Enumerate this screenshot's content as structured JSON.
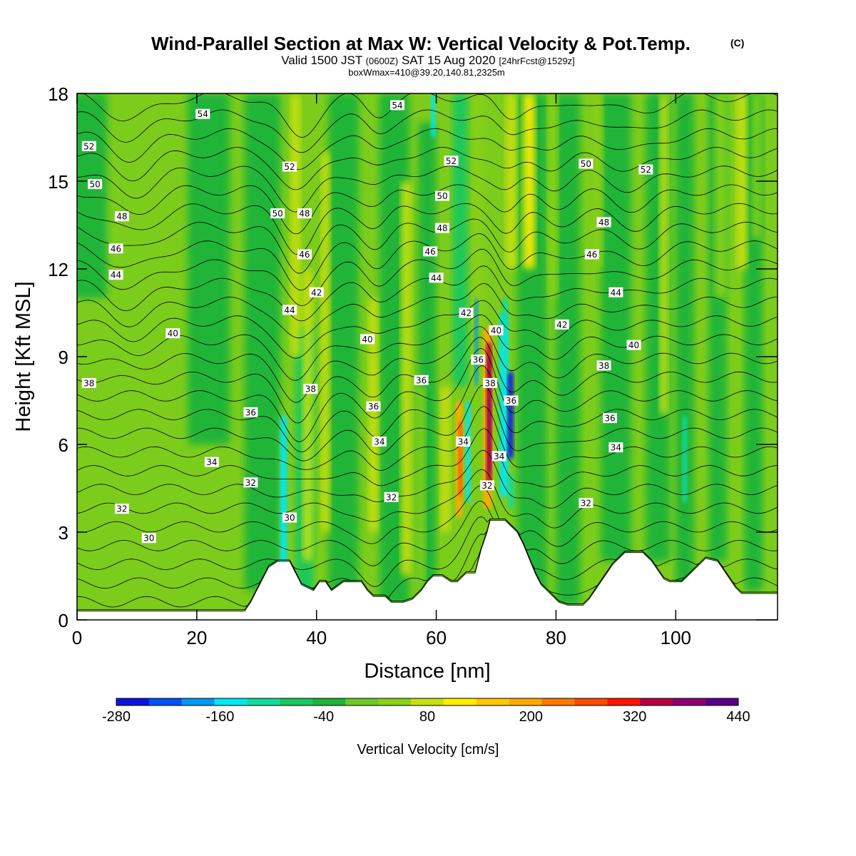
{
  "chart_data": {
    "type": "heatmap",
    "title": "Wind-Parallel Section at Max W: Vertical Velocity & Pot.Temp.",
    "title_mark": "(C)",
    "subtitle_prefix": "Valid 1500 JST",
    "subtitle_small1": "(0600Z)",
    "subtitle_mid": "SAT 15 Aug 2020",
    "subtitle_small2": "[24hrFcst@1529z]",
    "subtitle2": "boxWmax=410@39.20,140.81,2325m",
    "xlabel": "Distance [nm]",
    "ylabel": "Height [Kft MSL]",
    "xlim": [
      0,
      117
    ],
    "ylim": [
      0,
      18
    ],
    "x_ticks": [
      0,
      20,
      40,
      60,
      80,
      100
    ],
    "y_ticks": [
      0,
      3,
      6,
      9,
      12,
      15,
      18
    ],
    "colorbar": {
      "title": "Vertical Velocity [cm/s]",
      "tick_labels": [
        -280,
        -160,
        -40,
        80,
        200,
        320,
        440
      ],
      "levels": [
        -280,
        -240,
        -200,
        -160,
        -120,
        -80,
        -40,
        0,
        40,
        80,
        120,
        160,
        200,
        240,
        280,
        320,
        360,
        400,
        440
      ],
      "colors": [
        "#0a14e0",
        "#0050f5",
        "#0098f5",
        "#00e8f0",
        "#10dca0",
        "#18c860",
        "#1eb43a",
        "#6cc828",
        "#8ad218",
        "#c8e010",
        "#ffee00",
        "#ffc800",
        "#ffaa00",
        "#ff7800",
        "#ff4800",
        "#ff1400",
        "#b40040",
        "#8a0070",
        "#5a0088"
      ]
    },
    "background_color": "#7ccc1c",
    "terrain": [
      [
        0,
        0.3
      ],
      [
        28,
        0.3
      ],
      [
        29,
        0.6
      ],
      [
        30,
        1.0
      ],
      [
        31,
        1.4
      ],
      [
        32,
        1.8
      ],
      [
        33.5,
        2.0
      ],
      [
        35.5,
        2.0
      ],
      [
        36.5,
        1.6
      ],
      [
        37.5,
        1.2
      ],
      [
        39.5,
        1.0
      ],
      [
        40.5,
        1.3
      ],
      [
        41.5,
        1.3
      ],
      [
        42.5,
        1.0
      ],
      [
        44.5,
        1.3
      ],
      [
        46,
        1.3
      ],
      [
        47.5,
        1.3
      ],
      [
        48.5,
        1.0
      ],
      [
        49.5,
        0.8
      ],
      [
        51.5,
        0.8
      ],
      [
        52.5,
        0.6
      ],
      [
        54.5,
        0.6
      ],
      [
        56,
        0.7
      ],
      [
        57.5,
        1.0
      ],
      [
        58.5,
        1.3
      ],
      [
        59.5,
        1.5
      ],
      [
        61,
        1.5
      ],
      [
        62.5,
        1.3
      ],
      [
        63.5,
        1.3
      ],
      [
        65,
        1.6
      ],
      [
        66.5,
        1.6
      ],
      [
        67.5,
        2.4
      ],
      [
        68.5,
        3.0
      ],
      [
        69,
        3.4
      ],
      [
        71.5,
        3.4
      ],
      [
        72.5,
        3.2
      ],
      [
        73.5,
        3.0
      ],
      [
        74.5,
        2.6
      ],
      [
        75.5,
        2.1
      ],
      [
        76.5,
        1.6
      ],
      [
        77.5,
        1.2
      ],
      [
        78.5,
        1.0
      ],
      [
        79.5,
        0.8
      ],
      [
        80.5,
        0.6
      ],
      [
        82,
        0.5
      ],
      [
        84.5,
        0.5
      ],
      [
        85.5,
        0.7
      ],
      [
        86.5,
        1.0
      ],
      [
        87.5,
        1.3
      ],
      [
        88.5,
        1.6
      ],
      [
        89.5,
        1.9
      ],
      [
        91.5,
        2.3
      ],
      [
        94.5,
        2.3
      ],
      [
        96,
        2.0
      ],
      [
        97,
        1.7
      ],
      [
        98,
        1.4
      ],
      [
        99,
        1.3
      ],
      [
        101,
        1.3
      ],
      [
        102.5,
        1.6
      ],
      [
        104,
        1.9
      ],
      [
        105,
        2.1
      ],
      [
        107,
        2.0
      ],
      [
        108,
        1.7
      ],
      [
        109,
        1.4
      ],
      [
        110,
        1.1
      ],
      [
        111,
        0.9
      ],
      [
        112.5,
        0.9
      ],
      [
        117,
        0.9
      ]
    ],
    "contour_levels": [
      28,
      29,
      30,
      31,
      32,
      33,
      34,
      35,
      36,
      37,
      38,
      39,
      40,
      41,
      42,
      43,
      44,
      45,
      46,
      47,
      48,
      49,
      50,
      51,
      52,
      53,
      54,
      55,
      56
    ],
    "contour_labels": [
      {
        "text": "54",
        "x": 21,
        "y": 17.3
      },
      {
        "text": "52",
        "x": 2,
        "y": 16.2
      },
      {
        "text": "50",
        "x": 3,
        "y": 14.9
      },
      {
        "text": "48",
        "x": 7.5,
        "y": 13.8
      },
      {
        "text": "46",
        "x": 6.5,
        "y": 12.7
      },
      {
        "text": "44",
        "x": 6.5,
        "y": 11.8
      },
      {
        "text": "40",
        "x": 16,
        "y": 9.8
      },
      {
        "text": "38",
        "x": 2,
        "y": 8.1
      },
      {
        "text": "36",
        "x": 29,
        "y": 7.1
      },
      {
        "text": "34",
        "x": 22.5,
        "y": 5.4
      },
      {
        "text": "32",
        "x": 29,
        "y": 4.7
      },
      {
        "text": "32",
        "x": 7.5,
        "y": 3.8
      },
      {
        "text": "30",
        "x": 12,
        "y": 2.8
      },
      {
        "text": "30",
        "x": 35.5,
        "y": 3.5
      },
      {
        "text": "52",
        "x": 35.5,
        "y": 15.5
      },
      {
        "text": "50",
        "x": 33.5,
        "y": 13.9
      },
      {
        "text": "48",
        "x": 38,
        "y": 13.9
      },
      {
        "text": "46",
        "x": 38,
        "y": 12.5
      },
      {
        "text": "42",
        "x": 40,
        "y": 11.2
      },
      {
        "text": "44",
        "x": 35.5,
        "y": 10.6
      },
      {
        "text": "38",
        "x": 39,
        "y": 7.9
      },
      {
        "text": "40",
        "x": 48.5,
        "y": 9.6
      },
      {
        "text": "36",
        "x": 49.5,
        "y": 7.3
      },
      {
        "text": "34",
        "x": 50.5,
        "y": 6.1
      },
      {
        "text": "32",
        "x": 52.5,
        "y": 4.2
      },
      {
        "text": "54",
        "x": 53.5,
        "y": 17.6
      },
      {
        "text": "52",
        "x": 62.5,
        "y": 15.7
      },
      {
        "text": "50",
        "x": 61,
        "y": 14.5
      },
      {
        "text": "48",
        "x": 61,
        "y": 13.4
      },
      {
        "text": "46",
        "x": 59,
        "y": 12.6
      },
      {
        "text": "44",
        "x": 60,
        "y": 11.7
      },
      {
        "text": "42",
        "x": 65,
        "y": 10.5
      },
      {
        "text": "40",
        "x": 70,
        "y": 9.9
      },
      {
        "text": "36",
        "x": 67,
        "y": 8.9
      },
      {
        "text": "36",
        "x": 57.5,
        "y": 8.2
      },
      {
        "text": "38",
        "x": 69,
        "y": 8.1
      },
      {
        "text": "36",
        "x": 72.5,
        "y": 7.5
      },
      {
        "text": "34",
        "x": 64.5,
        "y": 6.1
      },
      {
        "text": "34",
        "x": 70.5,
        "y": 5.6
      },
      {
        "text": "32",
        "x": 68.5,
        "y": 4.6
      },
      {
        "text": "50",
        "x": 85,
        "y": 15.6
      },
      {
        "text": "52",
        "x": 95,
        "y": 15.4
      },
      {
        "text": "48",
        "x": 88,
        "y": 13.6
      },
      {
        "text": "46",
        "x": 86,
        "y": 12.5
      },
      {
        "text": "44",
        "x": 90,
        "y": 11.2
      },
      {
        "text": "42",
        "x": 81,
        "y": 10.1
      },
      {
        "text": "40",
        "x": 93,
        "y": 9.4
      },
      {
        "text": "38",
        "x": 88,
        "y": 8.7
      },
      {
        "text": "36",
        "x": 89,
        "y": 6.9
      },
      {
        "text": "34",
        "x": 90,
        "y": 5.9
      },
      {
        "text": "32",
        "x": 85,
        "y": 4.0
      }
    ]
  }
}
